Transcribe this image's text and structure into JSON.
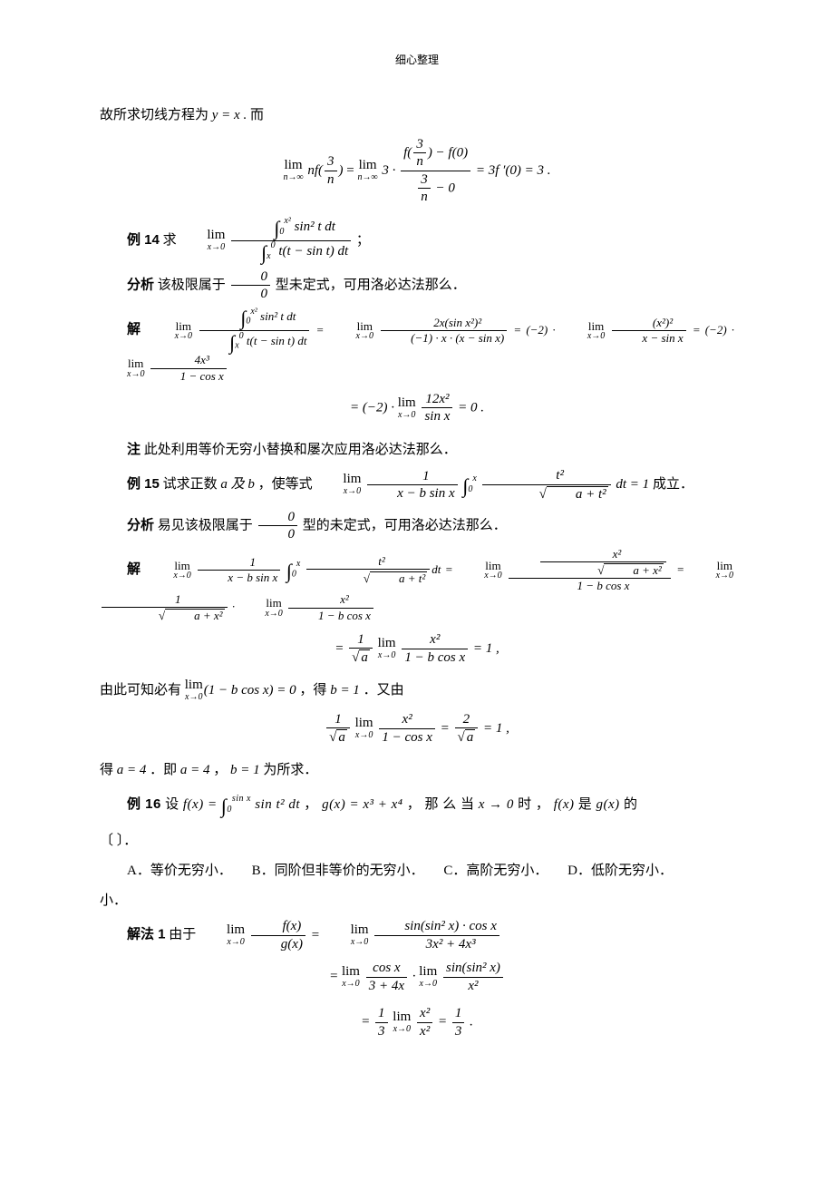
{
  "header": "细心整理",
  "p1_pre": "故所求切线方程为 ",
  "p1_math": "y = x .",
  "p1_post": " 而",
  "eq1_part1": "nf",
  "eq1_frac1n": "3",
  "eq1_frac1d": "n",
  "eq1_mid": "= ",
  "eq1_part2": "3 ·",
  "eq1_bignum1": "f(",
  "eq1_bignum_rp": ") − f(0)",
  "eq1_bigden": " − 0",
  "eq1_tail": "= 3f ′(0) = 3 .",
  "ex14_label": "例 14",
  "ex14_pre": " 求 ",
  "ex14_limn": "∫",
  "ex14_num": " sin² t dt",
  "ex14_den": " t(t − sin t) dt",
  "ex14_tail": " ；",
  "an14_label": "分析",
  "an14_text1": " 该极限属于 ",
  "an14_00n": "0",
  "an14_00d": "0",
  "an14_text2": " 型未定式，可用洛必达法那么．",
  "sol14_label": "解",
  "sol14_e1n": " sin² t dt",
  "sol14_e1d": " t(t − sin t) dt",
  "sol14_e1_eq": " = ",
  "sol14_e2n": "2x(sin x²)²",
  "sol14_e2d": "(−1) · x · (x − sin x)",
  "sol14_e2_eq": " = (−2) · ",
  "sol14_e3n": "(x²)²",
  "sol14_e3d": "x − sin x",
  "sol14_e3_eq": " = (−2) · ",
  "sol14_e4n": "4x³",
  "sol14_e4d": "1 − cos x",
  "sol14_line2_pre": "= (−2) · ",
  "sol14_line2n": "12x²",
  "sol14_line2d": "sin x",
  "sol14_line2_tail": " = 0 .",
  "note14_label": "注",
  "note14_text": " 此处利用等价无穷小替换和屡次应用洛必达法那么．",
  "ex15_label": "例 15",
  "ex15_pre": " 试求正数 ",
  "ex15_ab": "a 及 b",
  "ex15_mid": " ，使等式 ",
  "ex15_e1n": "1",
  "ex15_e1d": "x − b sin x",
  "ex15_e2n": "t²",
  "ex15_e2d_in": "a + t²",
  "ex15_dt": "dt = 1",
  "ex15_tail": " 成立．",
  "an15_label": "分析",
  "an15_text1": " 易见该极限属于 ",
  "an15_text2": " 型的未定式，可用洛必达法那么．",
  "sol15_label": "解",
  "sol15_e3nnum": "x²",
  "sol15_e3nden_in": "a + x²",
  "sol15_e3d": "1 − b cos x",
  "sol15_e4n": "1",
  "sol15_e4d_in": "a + x²",
  "sol15_e5n": "x²",
  "sol15_e5d": "1 − b cos x",
  "sol15_l2_pre": "= ",
  "sol15_l2_f1n": "1",
  "sol15_l2_f1d_in": "a",
  "sol15_l2_f2n": "x²",
  "sol15_l2_f2d": "1 − b cos x",
  "sol15_l2_tail": " = 1 ,",
  "p_after15_1a": "由此可知必有 ",
  "p_after15_1b": "(1 − b cos x) = 0",
  "p_after15_1c": " ，得 ",
  "p_after15_1d": "b = 1",
  "p_after15_1e": " ．又由",
  "eq15b_f1n": "1",
  "eq15b_f1d_in": "a",
  "eq15b_f2n": "x²",
  "eq15b_f2d": "1 − cos x",
  "eq15b_mid": " = ",
  "eq15b_f3n": "2",
  "eq15b_f3d_in": "a",
  "eq15b_tail": " = 1 ,",
  "p_after15_2a": "得 ",
  "p_after15_2b": "a = 4",
  "p_after15_2c": " ．即 ",
  "p_after15_2d": "a = 4",
  "p_after15_2e": "，",
  "p_after15_2f": "b = 1",
  "p_after15_2g": " 为所求．",
  "ex16_label": "例 16",
  "ex16_pre": " 设 ",
  "ex16_f": "f(x) = ",
  "ex16_int": " sin t² dt",
  "ex16_comma": "， ",
  "ex16_g": "g(x) = x³ + x⁴",
  "ex16_mid": "， 那 么 当 ",
  "ex16_xto": "x → 0",
  "ex16_post": " 时 ， ",
  "ex16_fx": "f(x)",
  "ex16_is": " 是 ",
  "ex16_gx": "g(x)",
  "ex16_tail": " 的",
  "ex16_blank": "〔   〕．",
  "optA": "A．等价无穷小．",
  "optB": "B．同阶但非等价的无穷小．",
  "optC": "C．高阶无穷小．",
  "optD": "D．低阶无穷小．",
  "sol16_label": "解法 1",
  "sol16_pre": " 由于 ",
  "sol16_e1n": "f(x)",
  "sol16_e1d": "g(x)",
  "sol16_e1_eq": " = ",
  "sol16_e2n": "sin(sin² x) · cos x",
  "sol16_e2d": "3x² + 4x³",
  "sol16_l2_eq": "= ",
  "sol16_l2an": "cos x",
  "sol16_l2ad": "3 + 4x",
  "sol16_l2_dot": " · ",
  "sol16_l2bn": "sin(sin² x)",
  "sol16_l2bd": "x²",
  "sol16_l3_eq": "= ",
  "sol16_l3an": "1",
  "sol16_l3ad": "3",
  "sol16_l3bn": "x²",
  "sol16_l3bd": "x²",
  "sol16_l3_mid": " = ",
  "sol16_l3cn": "1",
  "sol16_l3cd": "3",
  "sol16_l3_tail": " .",
  "lim_x0": "x→0",
  "lim_ninf": "n→∞",
  "int0": "0",
  "int_x": "x",
  "int_x2": "x²",
  "int_sinx": "sin x"
}
